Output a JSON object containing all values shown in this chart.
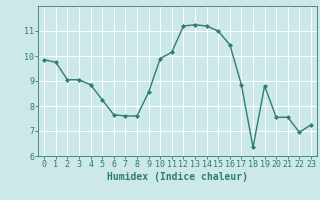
{
  "x": [
    0,
    1,
    2,
    3,
    4,
    5,
    6,
    7,
    8,
    9,
    10,
    11,
    12,
    13,
    14,
    15,
    16,
    17,
    18,
    19,
    20,
    21,
    22,
    23
  ],
  "y": [
    9.85,
    9.75,
    9.05,
    9.05,
    8.85,
    8.25,
    7.65,
    7.6,
    7.6,
    8.55,
    9.9,
    10.15,
    11.2,
    11.25,
    11.2,
    11.0,
    10.45,
    8.85,
    6.35,
    8.8,
    7.55,
    7.55,
    6.95,
    7.25
  ],
  "xlabel": "Humidex (Indice chaleur)",
  "ylim": [
    6,
    12
  ],
  "xlim": [
    -0.5,
    23.5
  ],
  "yticks": [
    6,
    7,
    8,
    9,
    10,
    11
  ],
  "xticks": [
    0,
    1,
    2,
    3,
    4,
    5,
    6,
    7,
    8,
    9,
    10,
    11,
    12,
    13,
    14,
    15,
    16,
    17,
    18,
    19,
    20,
    21,
    22,
    23
  ],
  "line_color": "#2e7d6e",
  "marker": "D",
  "marker_size": 2.0,
  "bg_color": "#cce8e8",
  "grid_color": "#ffffff",
  "tick_color": "#2e7d6e",
  "xlabel_fontsize": 7,
  "tick_fontsize": 6,
  "linewidth": 1.0
}
